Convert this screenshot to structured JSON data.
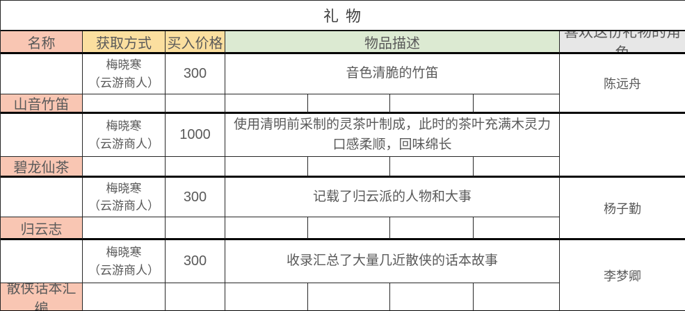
{
  "title": "礼 物",
  "header": {
    "name": "名称",
    "source": "获取方式",
    "price": "买入价格",
    "description": "物品描述",
    "liked_by": "喜欢这份礼物的角色"
  },
  "gifts": [
    {
      "name": "山音竹笛",
      "source": "梅晓寒\n（云游商人）",
      "price": "300",
      "description": "音色清脆的竹笛",
      "liked_by": "陈远舟"
    },
    {
      "name": "碧龙仙茶",
      "source": "梅晓寒\n（云游商人）",
      "price": "1000",
      "description": "使用清明前采制的灵茶叶制成，此时的茶叶充满木灵力\n口感柔顺，回味绵长",
      "liked_by": ""
    },
    {
      "name": "归云志",
      "source": "梅晓寒\n（云游商人）",
      "price": "300",
      "description": "记载了归云派的人物和大事",
      "liked_by": "杨子勤"
    },
    {
      "name": "散侠话本汇编",
      "source": "梅晓寒\n（云游商人）",
      "price": "300",
      "description": "收录汇总了大量几近散侠的话本故事",
      "liked_by": "李梦卿"
    }
  ],
  "colors": {
    "name_header_bg": "#f9c6b3",
    "source_price_header_bg": "#fbdf9f",
    "description_header_bg": "#dcead2",
    "liked_header_bg": "#e7e7e7",
    "text": "#595959",
    "grid_border": "#262626",
    "block_border": "#000000"
  }
}
